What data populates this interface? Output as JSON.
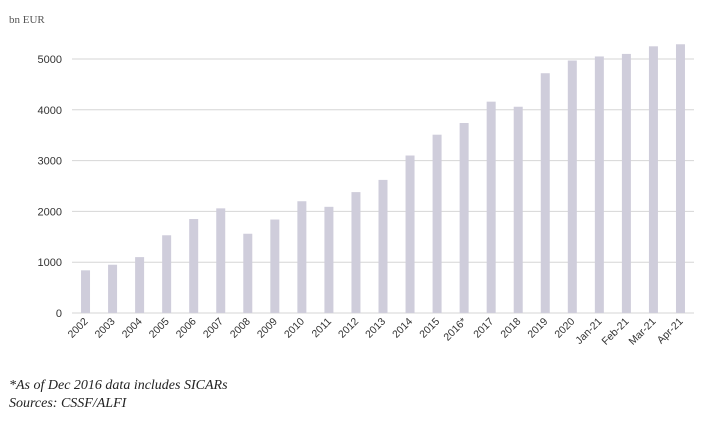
{
  "chart_data": {
    "type": "bar",
    "unit_label": "bn EUR",
    "categories": [
      "2002",
      "2003",
      "2004",
      "2005",
      "2006",
      "2007",
      "2008",
      "2009",
      "2010",
      "2011",
      "2012",
      "2013",
      "2014",
      "2015",
      "2016*",
      "2017",
      "2018",
      "2019",
      "2020",
      "Jan-21",
      "Feb-21",
      "Mar-21",
      "Apr-21"
    ],
    "values": [
      840,
      950,
      1100,
      1530,
      1850,
      2060,
      1560,
      1840,
      2200,
      2090,
      2380,
      2620,
      3100,
      3510,
      3740,
      4160,
      4060,
      4720,
      4970,
      5050,
      5100,
      5250,
      5290
    ],
    "yticks": [
      0,
      1000,
      2000,
      3000,
      4000,
      5000
    ],
    "ylim": [
      0,
      5500
    ],
    "grid": true,
    "bar_color": "#cfcddb",
    "grid_color": "#d6d6d6"
  },
  "footnotes": {
    "note": "*As of Dec 2016 data includes SICARs",
    "sources": "Sources: CSSF/ALFI"
  }
}
